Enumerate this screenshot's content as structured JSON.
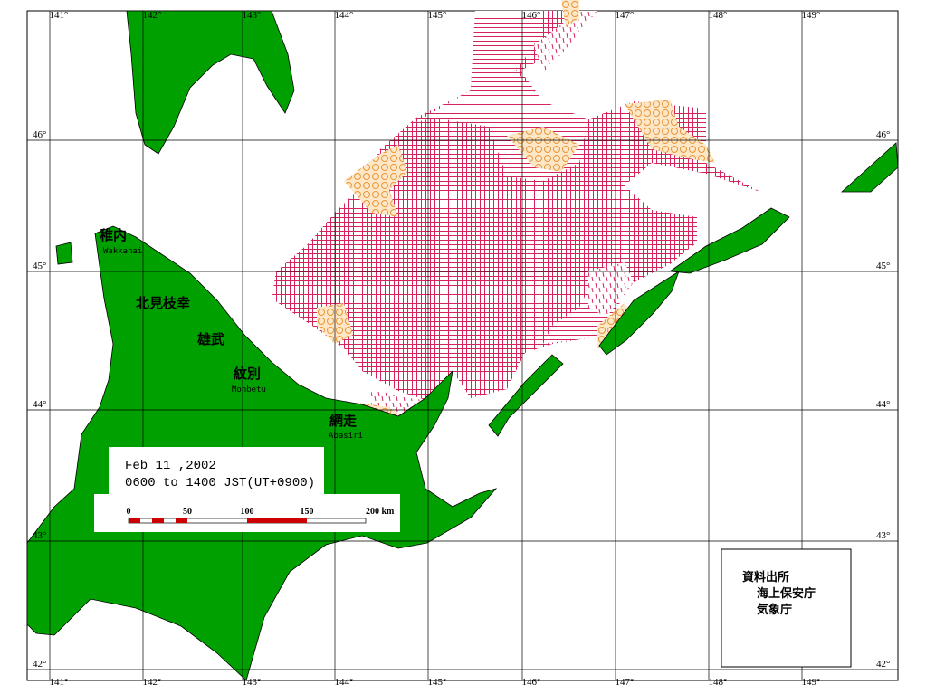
{
  "map": {
    "lon_labels_top": [
      "141°",
      "142°",
      "143°",
      "144°",
      "145°",
      "146°",
      "147°",
      "148°",
      "149°"
    ],
    "lon_labels_bottom": [
      "141°",
      "142°",
      "143°",
      "144°",
      "145°",
      "146°",
      "147°",
      "148°",
      "149°"
    ],
    "lat_labels_left": [
      "46°",
      "45°",
      "44°",
      "43°",
      "42°"
    ],
    "lat_labels_right": [
      "46°",
      "45°",
      "44°",
      "43°",
      "42°"
    ],
    "places": [
      {
        "name": "稚内",
        "romaji": "Wakkanai"
      },
      {
        "name": "北見枝幸"
      },
      {
        "name": "雄武"
      },
      {
        "name": "紋別",
        "romaji": "Monbetu"
      },
      {
        "name": "網走",
        "romaji": "Abasiri"
      }
    ],
    "date_box": {
      "date": "Feb 11 ,2002",
      "time": "0600 to 1400 JST(UT+0900)"
    },
    "scale": [
      "0",
      "50",
      "100",
      "150",
      "200 km"
    ],
    "source": [
      "資料出所",
      "海上保安庁",
      "気象庁"
    ]
  }
}
